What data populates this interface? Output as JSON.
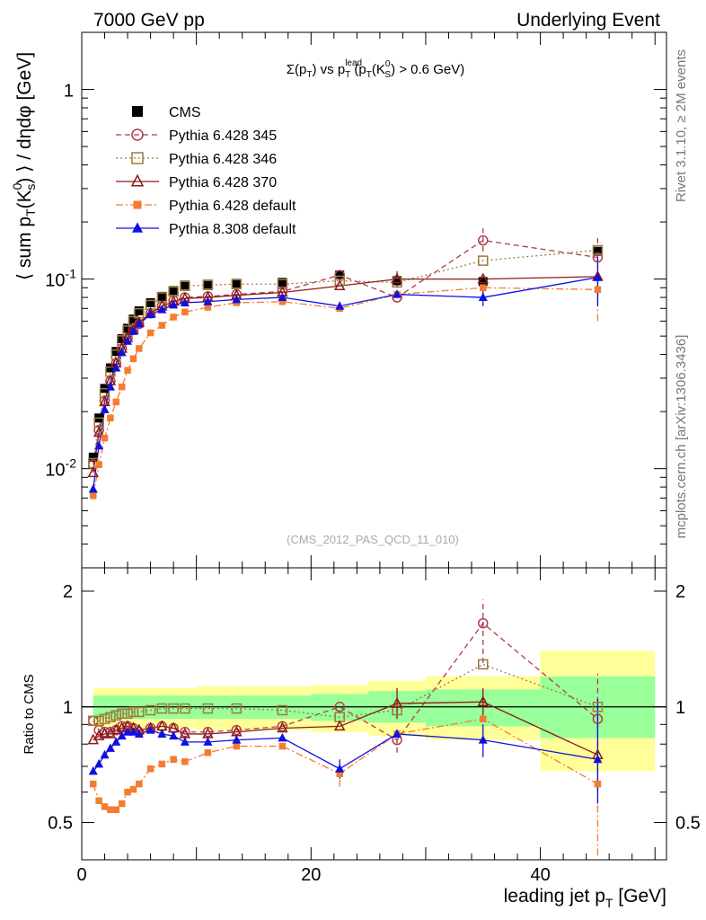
{
  "header": {
    "left": "7000 GeV pp",
    "right": "Underlying Event"
  },
  "side_labels": {
    "rivet": "Rivet 3.1.10, ≥ 2M events",
    "source": "mcplots.cern.ch [arXiv:1306.3436]"
  },
  "chart_data": [
    {
      "type": "scatter",
      "panel": "main",
      "title_parts": {
        "a": "Σ(p",
        "a_sub": "T",
        "b": ") vs p",
        "b_sup": "lead",
        "b_sub": "T",
        "c": " (p",
        "c_sub": "T",
        "d": "(K",
        "d_sup": "0",
        "d_sub": "S",
        "e": ") > 0.6 GeV)"
      },
      "ylabel_parts": {
        "a": "⟨ sum p",
        "a_sub": "T",
        "b": "(K",
        "b_sup": "0",
        "b_sub": "s",
        "c": ") ⟩ / dηdφ [GeV]"
      },
      "yscale": "log",
      "ylim": [
        0.003,
        2.0
      ],
      "xlim": [
        0,
        51
      ],
      "y_ticks": [
        {
          "value": 0.01,
          "base": "10",
          "exp": "-2"
        },
        {
          "value": 0.1,
          "base": "10",
          "exp": "-1"
        },
        {
          "value": 1,
          "base": "1",
          "exp": ""
        }
      ],
      "watermark": "(CMS_2012_PAS_QCD_11_010)",
      "x": [
        1.0,
        1.5,
        2.0,
        2.5,
        3.0,
        3.5,
        4.0,
        4.5,
        5.0,
        6.0,
        7.0,
        8.0,
        9.0,
        11.0,
        13.5,
        17.5,
        22.5,
        27.5,
        35.0,
        45.0
      ],
      "series": [
        {
          "name": "CMS",
          "key": "cms",
          "color": "#000000",
          "marker": "square-filled",
          "line": "none",
          "values": [
            0.0115,
            0.0185,
            0.0265,
            0.034,
            0.0415,
            0.0485,
            0.055,
            0.0615,
            0.068,
            0.075,
            0.081,
            0.087,
            0.093,
            0.094,
            0.095,
            0.096,
            0.105,
            0.098,
            0.097,
            0.14
          ]
        },
        {
          "name": "Pythia 6.428 345",
          "key": "p345",
          "color": "#b03a4e",
          "marker": "circle-open",
          "line": "dashed",
          "values": [
            0.0105,
            0.016,
            0.0228,
            0.029,
            0.036,
            0.043,
            0.049,
            0.054,
            0.058,
            0.066,
            0.072,
            0.077,
            0.08,
            0.081,
            0.083,
            0.086,
            0.105,
            0.08,
            0.16,
            0.13
          ]
        },
        {
          "name": "Pythia 6.428 346",
          "key": "p346",
          "color": "#9c7b3c",
          "marker": "square-open",
          "line": "dotted",
          "values": [
            0.0107,
            0.0175,
            0.025,
            0.0325,
            0.04,
            0.0475,
            0.0535,
            0.06,
            0.066,
            0.073,
            0.08,
            0.086,
            0.092,
            0.093,
            0.094,
            0.094,
            0.098,
            0.096,
            0.125,
            0.142
          ]
        },
        {
          "name": "Pythia 6.428 370",
          "key": "p370",
          "color": "#8b1a1a",
          "marker": "triangle-open",
          "line": "solid",
          "values": [
            0.0095,
            0.0155,
            0.0225,
            0.029,
            0.036,
            0.043,
            0.049,
            0.054,
            0.059,
            0.066,
            0.072,
            0.076,
            0.079,
            0.08,
            0.082,
            0.085,
            0.092,
            0.1,
            0.1,
            0.103
          ]
        },
        {
          "name": "Pythia 6.428 default",
          "key": "p6def",
          "color": "#f47c30",
          "marker": "square-filled-small",
          "line": "dashdot",
          "values": [
            0.0072,
            0.0105,
            0.0145,
            0.0185,
            0.0225,
            0.027,
            0.033,
            0.038,
            0.043,
            0.052,
            0.057,
            0.063,
            0.067,
            0.071,
            0.075,
            0.076,
            0.07,
            0.083,
            0.09,
            0.088
          ]
        },
        {
          "name": "Pythia 8.308 default",
          "key": "p8def",
          "color": "#1010e0",
          "marker": "triangle-filled",
          "line": "solid",
          "values": [
            0.0078,
            0.0132,
            0.0205,
            0.027,
            0.034,
            0.041,
            0.047,
            0.053,
            0.058,
            0.065,
            0.069,
            0.073,
            0.075,
            0.076,
            0.078,
            0.08,
            0.072,
            0.083,
            0.08,
            0.102
          ]
        }
      ],
      "error_bars": [
        {
          "series": "p345",
          "x": 35.0,
          "lo": 0.14,
          "hi": 0.185
        },
        {
          "series": "p345",
          "x": 45.0,
          "lo": 0.08,
          "hi": 0.165
        },
        {
          "series": "p6def",
          "x": 45.0,
          "lo": 0.06,
          "hi": 0.115
        },
        {
          "series": "p8def",
          "x": 45.0,
          "lo": 0.072,
          "hi": 0.13
        },
        {
          "series": "p370",
          "x": 27.5,
          "lo": 0.09,
          "hi": 0.11
        },
        {
          "series": "p8def",
          "x": 35.0,
          "lo": 0.072,
          "hi": 0.088
        }
      ]
    },
    {
      "type": "scatter",
      "panel": "ratio",
      "ylabel": "Ratio to CMS",
      "yscale": "log",
      "ylim": [
        0.4,
        2.3
      ],
      "xlim": [
        0,
        51
      ],
      "y_ticks": [
        {
          "value": 0.5,
          "label": "0.5"
        },
        {
          "value": 1,
          "label": "1"
        },
        {
          "value": 2,
          "label": "2"
        }
      ],
      "x_ticks": [
        {
          "value": 0,
          "label": "0"
        },
        {
          "value": 20,
          "label": "20"
        },
        {
          "value": 40,
          "label": "40"
        }
      ],
      "xlabel": "leading jet p",
      "xlabel_sub": "T",
      "xlabel_unit": " [GeV]",
      "reference": 1.0,
      "uncertainty_bins": [
        {
          "x0": 1,
          "x1": 10,
          "inner": [
            0.93,
            1.07
          ],
          "outer": [
            0.88,
            1.12
          ]
        },
        {
          "x0": 10,
          "x1": 20,
          "inner": [
            0.93,
            1.07
          ],
          "outer": [
            0.87,
            1.13
          ]
        },
        {
          "x0": 20,
          "x1": 25,
          "inner": [
            0.92,
            1.08
          ],
          "outer": [
            0.86,
            1.14
          ]
        },
        {
          "x0": 25,
          "x1": 30,
          "inner": [
            0.91,
            1.1
          ],
          "outer": [
            0.84,
            1.17
          ]
        },
        {
          "x0": 30,
          "x1": 40,
          "inner": [
            0.89,
            1.11
          ],
          "outer": [
            0.82,
            1.2
          ]
        },
        {
          "x0": 40,
          "x1": 50,
          "inner": [
            0.83,
            1.2
          ],
          "outer": [
            0.68,
            1.4
          ]
        }
      ],
      "x": [
        1.0,
        1.5,
        2.0,
        2.5,
        3.0,
        3.5,
        4.0,
        4.5,
        5.0,
        6.0,
        7.0,
        8.0,
        9.0,
        11.0,
        13.5,
        17.5,
        22.5,
        27.5,
        35.0,
        45.0
      ],
      "series": [
        {
          "name": "Pythia 6.428 345",
          "key": "p345",
          "values": [
            0.92,
            0.87,
            0.86,
            0.86,
            0.87,
            0.89,
            0.89,
            0.88,
            0.86,
            0.88,
            0.89,
            0.88,
            0.86,
            0.86,
            0.87,
            0.89,
            1.0,
            0.82,
            1.65,
            0.93
          ]
        },
        {
          "name": "Pythia 6.428 346",
          "key": "p346",
          "values": [
            0.92,
            0.92,
            0.93,
            0.94,
            0.95,
            0.96,
            0.96,
            0.97,
            0.97,
            0.98,
            0.99,
            0.99,
            0.99,
            0.99,
            0.99,
            0.98,
            0.94,
            0.98,
            1.29,
            1.0
          ]
        },
        {
          "name": "Pythia 6.428 370",
          "key": "p370",
          "values": [
            0.82,
            0.84,
            0.85,
            0.85,
            0.87,
            0.88,
            0.89,
            0.88,
            0.87,
            0.88,
            0.89,
            0.88,
            0.85,
            0.85,
            0.86,
            0.88,
            0.89,
            1.02,
            1.03,
            0.75
          ]
        },
        {
          "name": "Pythia 6.428 default",
          "key": "p6def",
          "values": [
            0.63,
            0.57,
            0.55,
            0.54,
            0.54,
            0.56,
            0.6,
            0.61,
            0.63,
            0.69,
            0.71,
            0.73,
            0.72,
            0.76,
            0.79,
            0.79,
            0.67,
            0.85,
            0.93,
            0.63
          ]
        },
        {
          "name": "Pythia 8.308 default",
          "key": "p8def",
          "values": [
            0.68,
            0.71,
            0.75,
            0.78,
            0.81,
            0.84,
            0.86,
            0.86,
            0.85,
            0.87,
            0.85,
            0.84,
            0.81,
            0.81,
            0.82,
            0.83,
            0.69,
            0.85,
            0.82,
            0.73
          ]
        }
      ],
      "error_bars": [
        {
          "series": "p345",
          "x": 35.0,
          "lo": 1.3,
          "hi": 1.9
        },
        {
          "series": "p345",
          "x": 45.0,
          "lo": 0.6,
          "hi": 1.22
        },
        {
          "series": "p370",
          "x": 27.5,
          "lo": 0.93,
          "hi": 1.12
        },
        {
          "series": "p370",
          "x": 35.0,
          "lo": 0.95,
          "hi": 1.12
        },
        {
          "series": "p6def",
          "x": 45.0,
          "lo": 0.41,
          "hi": 0.82
        },
        {
          "series": "p8def",
          "x": 45.0,
          "lo": 0.56,
          "hi": 1.05
        },
        {
          "series": "p8def",
          "x": 35.0,
          "lo": 0.74,
          "hi": 0.9
        },
        {
          "series": "p8def",
          "x": 22.5,
          "lo": 0.65,
          "hi": 0.73
        },
        {
          "series": "p345",
          "x": 27.5,
          "lo": 0.76,
          "hi": 0.88
        },
        {
          "series": "p6def",
          "x": 22.5,
          "lo": 0.62,
          "hi": 0.71
        }
      ]
    }
  ]
}
